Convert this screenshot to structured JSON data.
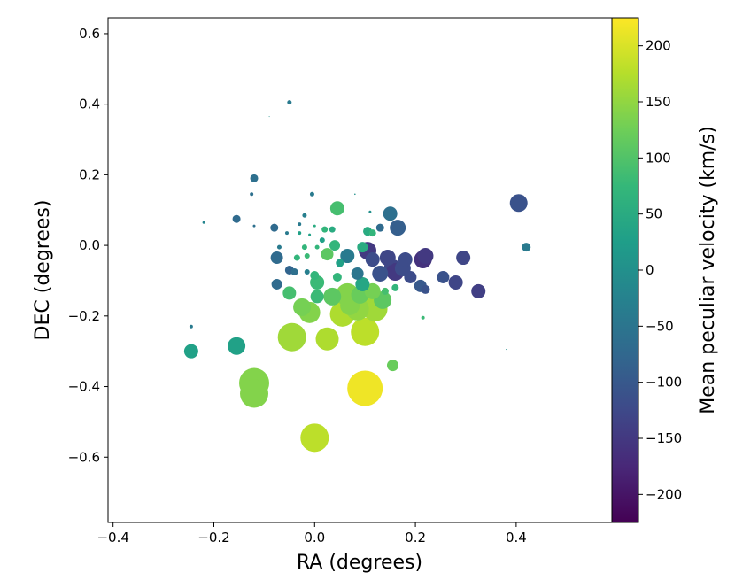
{
  "chart_data": {
    "type": "scatter",
    "xlabel": "RA (degrees)",
    "ylabel": "DEC (degrees)",
    "xlim": [
      -0.41,
      0.59
    ],
    "ylim": [
      -0.785,
      0.645
    ],
    "xticks": [
      {
        "v": -0.4,
        "t": "−0.4"
      },
      {
        "v": -0.2,
        "t": "−0.2"
      },
      {
        "v": 0.0,
        "t": "0.0"
      },
      {
        "v": 0.2,
        "t": "0.2"
      },
      {
        "v": 0.4,
        "t": "0.4"
      }
    ],
    "yticks": [
      {
        "v": 0.6,
        "t": "0.6"
      },
      {
        "v": 0.4,
        "t": "0.4"
      },
      {
        "v": 0.2,
        "t": "0.2"
      },
      {
        "v": 0.0,
        "t": "0.0"
      },
      {
        "v": -0.2,
        "t": "−0.2"
      },
      {
        "v": -0.4,
        "t": "−0.4"
      },
      {
        "v": -0.6,
        "t": "−0.6"
      }
    ],
    "colorbar": {
      "label": "Mean peculiar velocity (km/s)",
      "range": [
        -225,
        225
      ],
      "ticks": [
        {
          "v": 200,
          "t": "200"
        },
        {
          "v": 150,
          "t": "150"
        },
        {
          "v": 100,
          "t": "100"
        },
        {
          "v": 50,
          "t": "50"
        },
        {
          "v": 0,
          "t": "0"
        },
        {
          "v": -50,
          "t": "−50"
        },
        {
          "v": -100,
          "t": "−100"
        },
        {
          "v": -150,
          "t": "−150"
        },
        {
          "v": -200,
          "t": "−200"
        }
      ],
      "colormap": [
        "#440154",
        "#482878",
        "#3e4989",
        "#31688e",
        "#26828e",
        "#1f9e89",
        "#35b779",
        "#6ece58",
        "#b5de2b",
        "#fde725"
      ]
    },
    "points": [
      {
        "x": -0.05,
        "y": 0.405,
        "r": 2.5,
        "v": -40
      },
      {
        "x": -0.09,
        "y": 0.365,
        "r": 0.5,
        "v": 0
      },
      {
        "x": -0.12,
        "y": 0.19,
        "r": 4.5,
        "v": -60
      },
      {
        "x": -0.125,
        "y": 0.145,
        "r": 2,
        "v": -60
      },
      {
        "x": -0.22,
        "y": 0.065,
        "r": 1.5,
        "v": -20
      },
      {
        "x": -0.155,
        "y": 0.075,
        "r": 4.5,
        "v": -70
      },
      {
        "x": -0.12,
        "y": 0.055,
        "r": 1.5,
        "v": -60
      },
      {
        "x": -0.08,
        "y": 0.05,
        "r": 4.5,
        "v": -70
      },
      {
        "x": -0.055,
        "y": 0.035,
        "r": 2,
        "v": -40
      },
      {
        "x": -0.03,
        "y": 0.06,
        "r": 2,
        "v": -40
      },
      {
        "x": -0.02,
        "y": 0.085,
        "r": 2.5,
        "v": -30
      },
      {
        "x": -0.005,
        "y": 0.145,
        "r": 2.5,
        "v": -40
      },
      {
        "x": 0.045,
        "y": 0.105,
        "r": 8,
        "v": 90
      },
      {
        "x": 0.11,
        "y": 0.095,
        "r": 1.5,
        "v": 0
      },
      {
        "x": 0.08,
        "y": 0.145,
        "r": 0.8,
        "v": 0
      },
      {
        "x": 0.15,
        "y": 0.09,
        "r": 8,
        "v": -60
      },
      {
        "x": 0.165,
        "y": 0.05,
        "r": 9,
        "v": -90
      },
      {
        "x": 0.13,
        "y": 0.05,
        "r": 4.5,
        "v": -70
      },
      {
        "x": 0.105,
        "y": 0.04,
        "r": 5,
        "v": 50
      },
      {
        "x": 0.115,
        "y": 0.035,
        "r": 4,
        "v": 70
      },
      {
        "x": 0.035,
        "y": 0.045,
        "r": 3.5,
        "v": 50
      },
      {
        "x": 0.02,
        "y": 0.045,
        "r": 3.5,
        "v": 70
      },
      {
        "x": 0.0,
        "y": 0.055,
        "r": 1.5,
        "v": 50
      },
      {
        "x": 0.015,
        "y": 0.015,
        "r": 3,
        "v": 30
      },
      {
        "x": -0.03,
        "y": 0.035,
        "r": 2,
        "v": 30
      },
      {
        "x": -0.01,
        "y": 0.03,
        "r": 1.5,
        "v": 30
      },
      {
        "x": 0.005,
        "y": -0.005,
        "r": 2.5,
        "v": 70
      },
      {
        "x": -0.02,
        "y": -0.005,
        "r": 3,
        "v": 70
      },
      {
        "x": -0.07,
        "y": -0.005,
        "r": 2.5,
        "v": -40
      },
      {
        "x": -0.075,
        "y": -0.035,
        "r": 7,
        "v": -70
      },
      {
        "x": -0.035,
        "y": -0.035,
        "r": 3.5,
        "v": 70
      },
      {
        "x": -0.015,
        "y": -0.03,
        "r": 3,
        "v": 80
      },
      {
        "x": 0.025,
        "y": -0.025,
        "r": 7,
        "v": 110
      },
      {
        "x": 0.04,
        "y": 0.0,
        "r": 6,
        "v": 70
      },
      {
        "x": 0.065,
        "y": -0.03,
        "r": 8,
        "v": -40
      },
      {
        "x": 0.095,
        "y": -0.005,
        "r": 6,
        "v": 50
      },
      {
        "x": 0.105,
        "y": -0.015,
        "r": 10,
        "v": -150
      },
      {
        "x": 0.115,
        "y": -0.04,
        "r": 8,
        "v": -120
      },
      {
        "x": 0.145,
        "y": -0.035,
        "r": 9,
        "v": -130
      },
      {
        "x": 0.18,
        "y": -0.04,
        "r": 8,
        "v": -120
      },
      {
        "x": 0.22,
        "y": -0.03,
        "r": 9,
        "v": -150
      },
      {
        "x": 0.215,
        "y": -0.04,
        "r": 10,
        "v": -160
      },
      {
        "x": 0.295,
        "y": -0.035,
        "r": 8,
        "v": -130
      },
      {
        "x": 0.405,
        "y": 0.12,
        "r": 10,
        "v": -110
      },
      {
        "x": 0.42,
        "y": -0.005,
        "r": 5,
        "v": -40
      },
      {
        "x": -0.05,
        "y": -0.07,
        "r": 5,
        "v": -80
      },
      {
        "x": -0.04,
        "y": -0.075,
        "r": 4,
        "v": -60
      },
      {
        "x": -0.015,
        "y": -0.075,
        "r": 3,
        "v": -30
      },
      {
        "x": 0.0,
        "y": -0.085,
        "r": 5,
        "v": 70
      },
      {
        "x": 0.005,
        "y": -0.105,
        "r": 8,
        "v": 80
      },
      {
        "x": 0.05,
        "y": -0.05,
        "r": 4.5,
        "v": 30
      },
      {
        "x": 0.045,
        "y": -0.09,
        "r": 5,
        "v": 70
      },
      {
        "x": 0.085,
        "y": -0.08,
        "r": 7,
        "v": -50
      },
      {
        "x": 0.095,
        "y": -0.11,
        "r": 8,
        "v": 40
      },
      {
        "x": 0.13,
        "y": -0.08,
        "r": 9,
        "v": -110
      },
      {
        "x": 0.155,
        "y": -0.065,
        "r": 10,
        "v": -130
      },
      {
        "x": 0.16,
        "y": -0.075,
        "r": 10,
        "v": -150
      },
      {
        "x": 0.175,
        "y": -0.065,
        "r": 9,
        "v": -120
      },
      {
        "x": 0.19,
        "y": -0.09,
        "r": 7,
        "v": -120
      },
      {
        "x": 0.255,
        "y": -0.09,
        "r": 7,
        "v": -110
      },
      {
        "x": 0.28,
        "y": -0.105,
        "r": 8,
        "v": -130
      },
      {
        "x": 0.325,
        "y": -0.13,
        "r": 8,
        "v": -140
      },
      {
        "x": 0.21,
        "y": -0.115,
        "r": 7,
        "v": -100
      },
      {
        "x": 0.22,
        "y": -0.125,
        "r": 5,
        "v": -110
      },
      {
        "x": -0.075,
        "y": -0.11,
        "r": 6,
        "v": -70
      },
      {
        "x": -0.05,
        "y": -0.135,
        "r": 7.5,
        "v": 90
      },
      {
        "x": 0.005,
        "y": -0.145,
        "r": 7.5,
        "v": 80
      },
      {
        "x": 0.035,
        "y": -0.145,
        "r": 10,
        "v": 110
      },
      {
        "x": 0.065,
        "y": -0.14,
        "r": 13,
        "v": 140
      },
      {
        "x": 0.09,
        "y": -0.14,
        "r": 10,
        "v": 120
      },
      {
        "x": 0.115,
        "y": -0.13,
        "r": 9,
        "v": 130
      },
      {
        "x": 0.135,
        "y": -0.155,
        "r": 10,
        "v": 110
      },
      {
        "x": 0.14,
        "y": -0.13,
        "r": 4,
        "v": 90
      },
      {
        "x": 0.16,
        "y": -0.12,
        "r": 4,
        "v": 70
      },
      {
        "x": -0.025,
        "y": -0.175,
        "r": 10,
        "v": 130
      },
      {
        "x": -0.01,
        "y": -0.19,
        "r": 12,
        "v": 140
      },
      {
        "x": 0.055,
        "y": -0.195,
        "r": 14,
        "v": 170
      },
      {
        "x": 0.07,
        "y": -0.17,
        "r": 11,
        "v": 140
      },
      {
        "x": 0.085,
        "y": -0.18,
        "r": 13,
        "v": 150
      },
      {
        "x": 0.12,
        "y": -0.18,
        "r": 14,
        "v": 160
      },
      {
        "x": 0.215,
        "y": -0.205,
        "r": 2,
        "v": 80
      },
      {
        "x": -0.245,
        "y": -0.23,
        "r": 2,
        "v": -40
      },
      {
        "x": -0.155,
        "y": -0.285,
        "r": 10,
        "v": 30
      },
      {
        "x": -0.245,
        "y": -0.3,
        "r": 8,
        "v": 30
      },
      {
        "x": -0.045,
        "y": -0.26,
        "r": 16,
        "v": 160
      },
      {
        "x": 0.025,
        "y": -0.265,
        "r": 13,
        "v": 170
      },
      {
        "x": 0.1,
        "y": -0.245,
        "r": 16,
        "v": 180
      },
      {
        "x": 0.155,
        "y": -0.34,
        "r": 6.5,
        "v": 120
      },
      {
        "x": 0.38,
        "y": -0.295,
        "r": 0.5,
        "v": 0
      },
      {
        "x": -0.12,
        "y": -0.39,
        "r": 17,
        "v": 140
      },
      {
        "x": -0.12,
        "y": -0.42,
        "r": 16,
        "v": 140
      },
      {
        "x": 0.1,
        "y": -0.405,
        "r": 20,
        "v": 215
      },
      {
        "x": 0.0,
        "y": -0.545,
        "r": 16,
        "v": 180
      }
    ]
  }
}
